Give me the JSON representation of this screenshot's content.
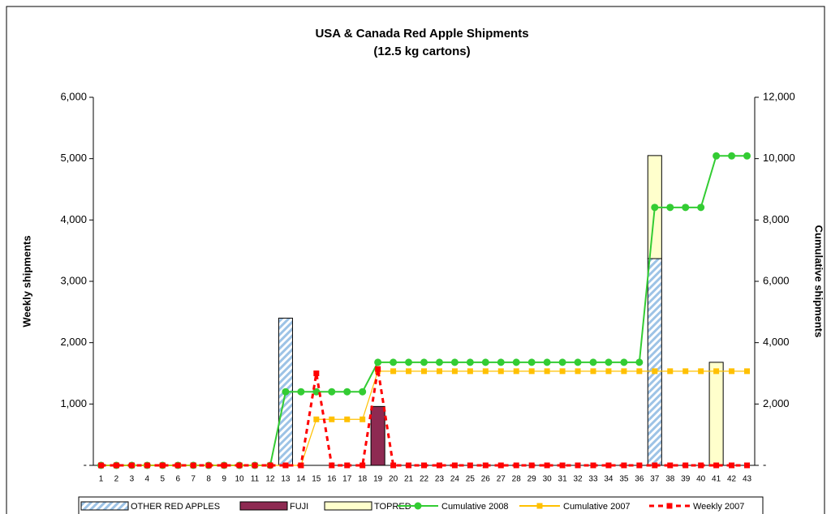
{
  "chart_data": {
    "type": "bar",
    "title": "USA & Canada Red Apple Shipments",
    "subtitle": "(12.5 kg cartons)",
    "y_label": "Weekly shipments",
    "y2_label": "Cumulative shipments",
    "categories": [
      "1",
      "2",
      "3",
      "4",
      "5",
      "6",
      "7",
      "8",
      "9",
      "10",
      "11",
      "12",
      "13",
      "14",
      "15",
      "16",
      "17",
      "18",
      "19",
      "20",
      "21",
      "22",
      "23",
      "24",
      "25",
      "26",
      "27",
      "28",
      "29",
      "30",
      "31",
      "32",
      "33",
      "34",
      "35",
      "36",
      "37",
      "38",
      "39",
      "40",
      "41",
      "42",
      "43"
    ],
    "ylim": [
      0,
      6000
    ],
    "yticks": [
      {
        "value": 0,
        "label": "-"
      },
      {
        "value": 1000,
        "label": "1,000"
      },
      {
        "value": 2000,
        "label": "2,000"
      },
      {
        "value": 3000,
        "label": "3,000"
      },
      {
        "value": 4000,
        "label": "4,000"
      },
      {
        "value": 5000,
        "label": "5,000"
      },
      {
        "value": 6000,
        "label": "6,000"
      }
    ],
    "y2lim": [
      0,
      12000
    ],
    "y2ticks": [
      {
        "value": 0,
        "label": "-"
      },
      {
        "value": 2000,
        "label": "2,000"
      },
      {
        "value": 4000,
        "label": "4,000"
      },
      {
        "value": 6000,
        "label": "6,000"
      },
      {
        "value": 8000,
        "label": "8,000"
      },
      {
        "value": 10000,
        "label": "10,000"
      },
      {
        "value": 12000,
        "label": "12,000"
      }
    ],
    "grid": false,
    "legend": "bottom",
    "series": [
      {
        "name": "OTHER RED APPLES",
        "type": "bar",
        "color": "#9dc3e6",
        "pattern": "hatch",
        "values": [
          0,
          0,
          0,
          0,
          0,
          0,
          0,
          0,
          0,
          0,
          0,
          0,
          2400,
          0,
          0,
          0,
          0,
          0,
          0,
          0,
          0,
          0,
          0,
          0,
          0,
          0,
          0,
          0,
          0,
          0,
          0,
          0,
          0,
          0,
          0,
          0,
          3370,
          0,
          0,
          0,
          0,
          0,
          0
        ]
      },
      {
        "name": "FUJI",
        "type": "bar",
        "color": "#8e2a52",
        "values": [
          0,
          0,
          0,
          0,
          0,
          0,
          0,
          0,
          0,
          0,
          0,
          0,
          0,
          0,
          0,
          0,
          0,
          0,
          960,
          0,
          0,
          0,
          0,
          0,
          0,
          0,
          0,
          0,
          0,
          0,
          0,
          0,
          0,
          0,
          0,
          0,
          0,
          0,
          0,
          0,
          0,
          0,
          0
        ]
      },
      {
        "name": "TOPRED",
        "type": "bar",
        "color": "#ffffcc",
        "values": [
          0,
          0,
          0,
          0,
          0,
          0,
          0,
          0,
          0,
          0,
          0,
          0,
          0,
          0,
          0,
          0,
          0,
          0,
          0,
          0,
          0,
          0,
          0,
          0,
          0,
          0,
          0,
          0,
          0,
          0,
          0,
          0,
          0,
          0,
          0,
          0,
          1680,
          0,
          0,
          0,
          1680,
          0,
          0
        ]
      },
      {
        "name": "Cumulative 2008",
        "type": "line",
        "axis": "y2",
        "color": "#33cc33",
        "marker": "circle",
        "values": [
          0,
          0,
          0,
          0,
          0,
          0,
          0,
          0,
          0,
          0,
          0,
          0,
          2400,
          2400,
          2400,
          2400,
          2400,
          2400,
          3360,
          3360,
          3360,
          3360,
          3360,
          3360,
          3360,
          3360,
          3360,
          3360,
          3360,
          3360,
          3360,
          3360,
          3360,
          3360,
          3360,
          3360,
          8410,
          8410,
          8410,
          8410,
          10090,
          10090,
          10090
        ]
      },
      {
        "name": "Cumulative 2007",
        "type": "line",
        "axis": "y2",
        "color": "#ffc000",
        "marker": "square",
        "values": [
          0,
          0,
          0,
          0,
          0,
          0,
          0,
          0,
          0,
          0,
          0,
          0,
          0,
          0,
          1500,
          1500,
          1500,
          1500,
          3070,
          3070,
          3070,
          3070,
          3070,
          3070,
          3070,
          3070,
          3070,
          3070,
          3070,
          3070,
          3070,
          3070,
          3070,
          3070,
          3070,
          3070,
          3070,
          3070,
          3070,
          3070,
          3070,
          3070,
          3070
        ]
      },
      {
        "name": "Weekly 2007",
        "type": "line",
        "color": "#ff0000",
        "marker": "square",
        "dashed": true,
        "values": [
          0,
          0,
          0,
          0,
          0,
          0,
          0,
          0,
          0,
          0,
          0,
          0,
          0,
          0,
          1500,
          0,
          0,
          0,
          1570,
          0,
          0,
          0,
          0,
          0,
          0,
          0,
          0,
          0,
          0,
          0,
          0,
          0,
          0,
          0,
          0,
          0,
          0,
          0,
          0,
          0,
          0,
          0,
          0
        ]
      }
    ]
  }
}
